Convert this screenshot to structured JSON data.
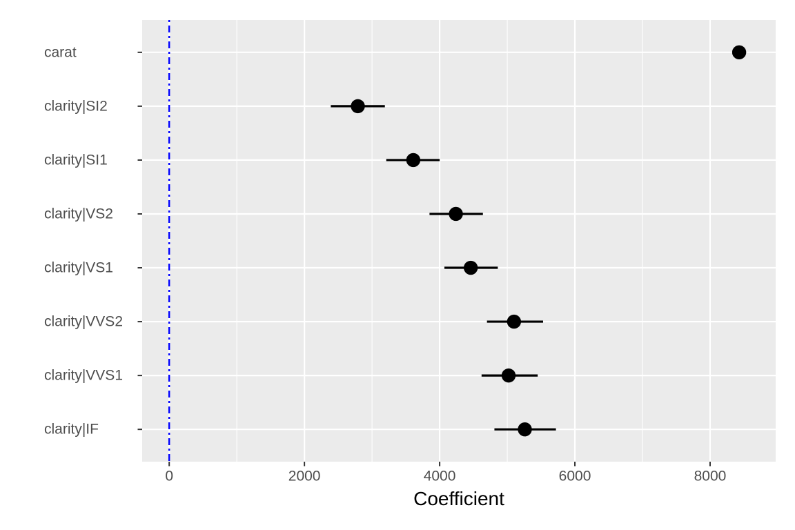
{
  "figure": {
    "background": "#FFFFFF",
    "panel_background": "#EBEBEB",
    "grid_color": "#FFFFFF",
    "axis_text_color": "#4D4D4D",
    "tick_mark_color": "#333333",
    "axis_title_color": "#000000"
  },
  "chart_data": {
    "type": "scatter",
    "subtype": "coefficient-plot-pointrange",
    "title": "",
    "xlabel": "Coefficient",
    "ylabel": "",
    "xlim": [
      -400,
      8970
    ],
    "x_major_ticks": [
      0,
      2000,
      4000,
      6000,
      8000
    ],
    "x_tick_labels": [
      "0",
      "2000",
      "4000",
      "6000",
      "8000"
    ],
    "x_minor_ticks": [
      1000,
      3000,
      5000,
      7000
    ],
    "grid": true,
    "legend": false,
    "reference_line": {
      "x": 0,
      "color": "#0000FF",
      "style": "dot-dash"
    },
    "categories": [
      "carat",
      "clarity|SI2",
      "clarity|SI1",
      "clarity|VS2",
      "clarity|VS1",
      "clarity|VVS2",
      "clarity|VVS1",
      "clarity|IF"
    ],
    "series": [
      {
        "name": "estimate",
        "values": [
          8430,
          2790,
          3610,
          4240,
          4460,
          5100,
          5020,
          5260
        ]
      },
      {
        "name": "ci_low",
        "values": [
          8400,
          2390,
          3210,
          3850,
          4070,
          4700,
          4620,
          4810
        ]
      },
      {
        "name": "ci_high",
        "values": [
          8460,
          3190,
          4000,
          4640,
          4860,
          5530,
          5450,
          5720
        ]
      }
    ],
    "point_color": "#000000",
    "errorbar_color": "#000000"
  }
}
